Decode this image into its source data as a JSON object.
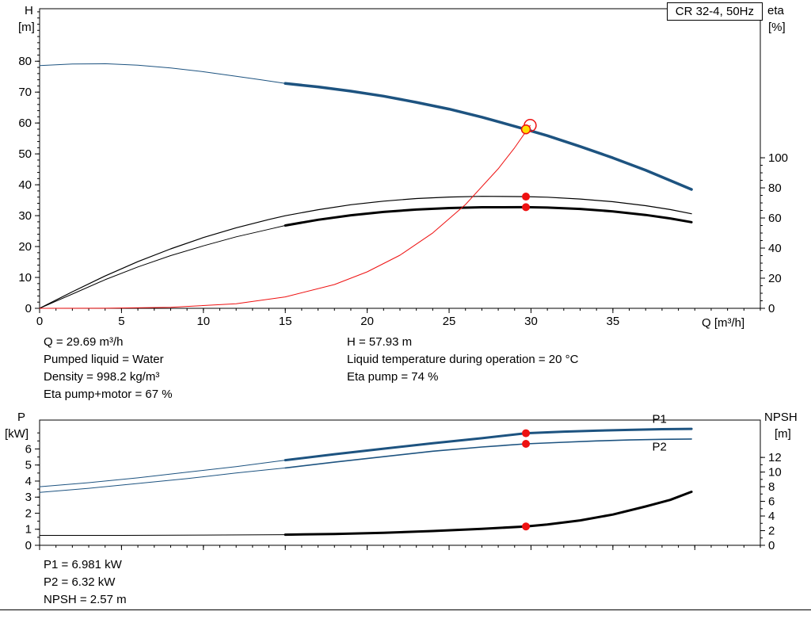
{
  "title_box": "CR 32-4, 50Hz",
  "axis_labels": {
    "top_left_1": "H",
    "top_left_2": "[m]",
    "top_right_1": "eta",
    "top_right_2": "[%]",
    "top_x": "Q [m³/h]",
    "bottom_left_1": "P",
    "bottom_left_2": "[kW]",
    "bottom_right_1": "NPSH",
    "bottom_right_2": "[m]"
  },
  "operating_info": {
    "left": [
      "Q = 29.69 m³/h",
      "Pumped liquid = Water",
      "Density = 998.2 kg/m³",
      "Eta pump+motor = 67 %"
    ],
    "right": [
      "H = 57.93 m",
      "Liquid temperature during operation = 20 °C",
      "Eta pump = 74 %"
    ]
  },
  "power_info": [
    "P1 = 6.981 kW",
    "P2 = 6.32 kW",
    "NPSH = 2.57 m"
  ],
  "duty_point": {
    "q_m3h": 29.69,
    "h_m": 57.93,
    "eta_pump_pct": 74,
    "eta_pump_motor_pct": 67,
    "p1_kw": 6.981,
    "p2_kw": 6.32,
    "npsh_m": 2.57,
    "density_kg_m3": 998.2,
    "liquid": "Water",
    "temperature_c": 20
  },
  "colors": {
    "curve_blue": "#1d5380",
    "curve_black": "#000000",
    "curve_red": "#ee1111",
    "duty_yellow": "#ffdd00"
  },
  "chart_data": [
    {
      "type": "line",
      "title": "CR 32-4, 50Hz",
      "x_label": "Q [m³/h]",
      "y_left_label": "H [m]",
      "y_right_label": "eta [%]",
      "x_range": [
        0,
        44
      ],
      "x_major_ticks": [
        0,
        5,
        10,
        15,
        20,
        25,
        30,
        35
      ],
      "x_minor_step": 1,
      "y_left_range": [
        0,
        97
      ],
      "y_left_major_ticks": [
        0,
        10,
        20,
        30,
        40,
        50,
        60,
        70,
        80
      ],
      "y_left_minor_step": 2,
      "y_left_minor_max": 96,
      "y_right_range": [
        0,
        199
      ],
      "y_right_major_ticks": [
        0,
        20,
        40,
        60,
        80,
        100
      ],
      "y_right_minor_step": 5,
      "y_right_minor_max": 100,
      "series": [
        {
          "name": "head-curve-extension",
          "axis": "left",
          "color": "#1d5380",
          "width": 1,
          "points": [
            [
              0,
              78.6
            ],
            [
              2,
              79.1
            ],
            [
              4,
              79.2
            ],
            [
              6,
              78.7
            ],
            [
              8,
              77.8
            ],
            [
              10,
              76.6
            ],
            [
              12,
              75.1
            ],
            [
              13.5,
              74.0
            ],
            [
              15,
              72.8
            ]
          ]
        },
        {
          "name": "head-curve",
          "axis": "left",
          "color": "#1d5380",
          "width": 3.5,
          "points": [
            [
              15,
              72.8
            ],
            [
              17,
              71.7
            ],
            [
              19,
              70.3
            ],
            [
              21,
              68.7
            ],
            [
              23,
              66.7
            ],
            [
              25,
              64.5
            ],
            [
              27,
              61.9
            ],
            [
              29.69,
              57.93
            ],
            [
              31,
              55.9
            ],
            [
              33,
              52.4
            ],
            [
              35,
              48.7
            ],
            [
              37,
              44.7
            ],
            [
              38.5,
              41.4
            ],
            [
              39.8,
              38.5
            ]
          ]
        },
        {
          "name": "eta-pump-curve",
          "axis": "right",
          "color": "#000000",
          "width": 1.2,
          "points": [
            [
              0,
              0
            ],
            [
              2,
              11
            ],
            [
              4,
              21.5
            ],
            [
              6,
              31
            ],
            [
              8,
              39.5
            ],
            [
              10,
              47
            ],
            [
              12,
              53.5
            ],
            [
              14,
              59
            ],
            [
              15,
              61.5
            ],
            [
              17,
              65.5
            ],
            [
              19,
              68.8
            ],
            [
              21,
              71.2
            ],
            [
              23,
              72.9
            ],
            [
              25,
              73.9
            ],
            [
              27,
              74.4
            ],
            [
              29.69,
              74.2
            ],
            [
              31,
              73.8
            ],
            [
              33,
              72.6
            ],
            [
              35,
              70.8
            ],
            [
              37,
              68.2
            ],
            [
              38.5,
              65.6
            ],
            [
              39.8,
              62.8
            ]
          ]
        },
        {
          "name": "eta-pump-motor-extension",
          "axis": "right",
          "color": "#000000",
          "width": 1,
          "points": [
            [
              0,
              0
            ],
            [
              2,
              9.5
            ],
            [
              4,
              19
            ],
            [
              6,
              27.5
            ],
            [
              8,
              35
            ],
            [
              10,
              41.5
            ],
            [
              12,
              47.5
            ],
            [
              14,
              52.5
            ],
            [
              15,
              55
            ]
          ]
        },
        {
          "name": "eta-pump-motor-curve",
          "axis": "right",
          "color": "#000000",
          "width": 3,
          "points": [
            [
              15,
              55
            ],
            [
              17,
              58.8
            ],
            [
              19,
              61.8
            ],
            [
              21,
              64
            ],
            [
              23,
              65.6
            ],
            [
              25,
              66.6
            ],
            [
              27,
              67.1
            ],
            [
              29.69,
              67.2
            ],
            [
              31,
              66.9
            ],
            [
              33,
              66
            ],
            [
              35,
              64.4
            ],
            [
              37,
              62
            ],
            [
              38.5,
              59.7
            ],
            [
              39.8,
              57.2
            ]
          ]
        },
        {
          "name": "system-curve",
          "axis": "left",
          "color": "#ee1111",
          "width": 1,
          "points": [
            [
              0,
              0
            ],
            [
              4,
              0.02
            ],
            [
              8,
              0.3
            ],
            [
              12,
              1.5
            ],
            [
              15,
              3.7
            ],
            [
              18,
              7.7
            ],
            [
              20,
              11.8
            ],
            [
              22,
              17.2
            ],
            [
              24,
              24.4
            ],
            [
              26,
              33.6
            ],
            [
              28,
              45.2
            ],
            [
              29,
              52
            ],
            [
              29.95,
              59.2
            ]
          ]
        }
      ],
      "markers": [
        {
          "name": "requested-duty-point",
          "axis": "left",
          "x": 29.95,
          "y": 59.2,
          "r": 7.5,
          "fill": "none",
          "stroke": "#ee1111",
          "stroke_width": 1.5
        },
        {
          "name": "duty-point",
          "axis": "left",
          "x": 29.69,
          "y": 57.93,
          "r": 5.5,
          "fill": "#ffdd00",
          "stroke": "#ee1111",
          "stroke_width": 1.5
        },
        {
          "name": "eta-pump-point",
          "axis": "right",
          "x": 29.69,
          "y": 74.2,
          "r": 5,
          "fill": "#ee1111",
          "stroke": "none"
        },
        {
          "name": "eta-pump-motor-point",
          "axis": "right",
          "x": 29.69,
          "y": 67.2,
          "r": 5,
          "fill": "#ee1111",
          "stroke": "none"
        }
      ],
      "labels": []
    },
    {
      "type": "line",
      "title": "",
      "x_label": "",
      "y_left_label": "P [kW]",
      "y_right_label": "NPSH [m]",
      "x_range": [
        0,
        44
      ],
      "x_major_ticks": [
        0,
        5,
        10,
        15,
        20,
        25,
        30,
        35,
        40
      ],
      "x_minor_step": 1,
      "y_left_range": [
        0,
        7.8
      ],
      "y_left_major_ticks": [
        0,
        1,
        2,
        3,
        4,
        5,
        6
      ],
      "y_left_minor_step": 0.5,
      "y_left_minor_max": 7,
      "y_right_range": [
        0,
        17.1
      ],
      "y_right_major_ticks": [
        0,
        2,
        4,
        6,
        8,
        10,
        12
      ],
      "y_right_minor_step": 1,
      "y_right_minor_max": 12,
      "series": [
        {
          "name": "p1-extension",
          "axis": "left",
          "color": "#1d5380",
          "width": 1,
          "points": [
            [
              0,
              3.65
            ],
            [
              3,
              3.9
            ],
            [
              6,
              4.2
            ],
            [
              9,
              4.55
            ],
            [
              12,
              4.9
            ],
            [
              15,
              5.3
            ]
          ]
        },
        {
          "name": "p1-curve",
          "axis": "left",
          "color": "#1d5380",
          "width": 3,
          "points": [
            [
              15,
              5.3
            ],
            [
              18,
              5.67
            ],
            [
              21,
              6.02
            ],
            [
              24,
              6.36
            ],
            [
              27,
              6.67
            ],
            [
              29.69,
              6.981
            ],
            [
              32,
              7.08
            ],
            [
              34,
              7.14
            ],
            [
              36,
              7.19
            ],
            [
              38,
              7.23
            ],
            [
              39.8,
              7.25
            ]
          ]
        },
        {
          "name": "p2-extension",
          "axis": "left",
          "color": "#1d5380",
          "width": 1,
          "points": [
            [
              0,
              3.3
            ],
            [
              3,
              3.55
            ],
            [
              6,
              3.85
            ],
            [
              9,
              4.15
            ],
            [
              12,
              4.5
            ],
            [
              15,
              4.82
            ]
          ]
        },
        {
          "name": "p2-curve",
          "axis": "left",
          "color": "#1d5380",
          "width": 1.6,
          "points": [
            [
              15,
              4.82
            ],
            [
              18,
              5.18
            ],
            [
              21,
              5.52
            ],
            [
              24,
              5.86
            ],
            [
              27,
              6.12
            ],
            [
              29.69,
              6.32
            ],
            [
              32,
              6.42
            ],
            [
              34,
              6.5
            ],
            [
              36,
              6.56
            ],
            [
              38,
              6.6
            ],
            [
              39.8,
              6.62
            ]
          ]
        },
        {
          "name": "npsh-extension",
          "axis": "right",
          "color": "#000000",
          "width": 1,
          "points": [
            [
              0,
              1.35
            ],
            [
              5,
              1.35
            ],
            [
              10,
              1.4
            ],
            [
              15,
              1.45
            ]
          ]
        },
        {
          "name": "npsh-curve",
          "axis": "right",
          "color": "#000000",
          "width": 3,
          "points": [
            [
              15,
              1.45
            ],
            [
              18,
              1.55
            ],
            [
              21,
              1.7
            ],
            [
              24,
              1.95
            ],
            [
              27,
              2.25
            ],
            [
              29.69,
              2.57
            ],
            [
              31,
              2.85
            ],
            [
              33,
              3.4
            ],
            [
              35,
              4.2
            ],
            [
              37,
              5.3
            ],
            [
              38.5,
              6.2
            ],
            [
              39.8,
              7.3
            ]
          ]
        }
      ],
      "markers": [
        {
          "name": "p1-point",
          "axis": "left",
          "x": 29.69,
          "y": 6.981,
          "r": 5,
          "fill": "#ee1111",
          "stroke": "none"
        },
        {
          "name": "p2-point",
          "axis": "left",
          "x": 29.69,
          "y": 6.32,
          "r": 5,
          "fill": "#ee1111",
          "stroke": "none"
        },
        {
          "name": "npsh-point",
          "axis": "right",
          "x": 29.69,
          "y": 2.57,
          "r": 5,
          "fill": "#ee1111",
          "stroke": "none"
        }
      ],
      "labels": [
        {
          "text": "P1",
          "x": 37.4,
          "y": 7.62,
          "axis": "left",
          "color": "#1d5380"
        },
        {
          "text": "P2",
          "x": 37.4,
          "y": 5.9,
          "axis": "left",
          "color": "#1d5380"
        }
      ]
    }
  ]
}
